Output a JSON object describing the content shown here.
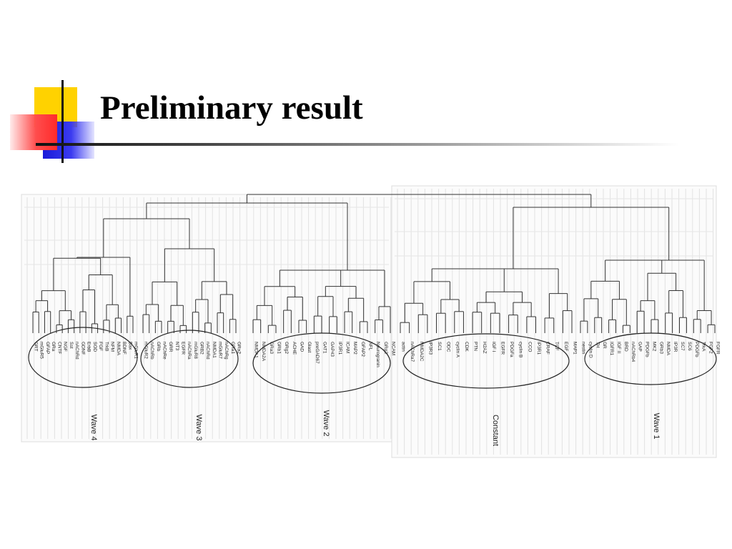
{
  "slide": {
    "title": "Preliminary result"
  },
  "dendrogram": {
    "groups": [
      {
        "label": "Wave 4",
        "leaves": [
          "GRT",
          "mGluR5",
          "GFAP",
          "GRa",
          "CNTF",
          "NGF",
          "Sst",
          "nAChRd",
          "GDNF",
          "ErbB",
          "SOD",
          "FGF",
          "TrkB",
          "NFM",
          "NMDA",
          "BDNF",
          "Bax",
          "mGluR1"
        ]
      },
      {
        "label": "Wave 3",
        "leaves": [
          "mGluR2",
          "nAChRb",
          "GRb",
          "nAChRe",
          "GRR",
          "NT3",
          "EGFR",
          "nAChRa",
          "mGluR8",
          "GRB2",
          "nAChRd",
          "NMDA1",
          "mGluR7",
          "nAChRg",
          "GRa1",
          "GRa2"
        ]
      },
      {
        "label": "Wave 2",
        "leaves": [
          "NMDA1",
          "NMDA2A",
          "GRa3",
          "GRb1",
          "GRg2",
          "ACHE",
          "GAD",
          "Glast",
          "preGAD67",
          "GAT1",
          "GAP43",
          "IP3R1",
          "ICAM",
          "MAP2",
          "GFAP2",
          "NFL",
          "Neurogranin",
          "GRg3",
          "NCAM"
        ]
      },
      {
        "label": "Constant",
        "leaves": [
          "actin",
          "nAChRa7",
          "NMDA2C",
          "IP3R3",
          "SC1",
          "ODC",
          "cyclin A",
          "CDK",
          "PTN",
          "H2AZ",
          "IGF I",
          "EGFR",
          "PDGFa",
          "cyclin B",
          "CCO",
          "IP3R1",
          "CRAF",
          "TCF",
          "EGF",
          "MAP1"
        ]
      },
      {
        "label": "Wave 1",
        "leaves": [
          "nestin",
          "cyclin D",
          "TH",
          "GR",
          "IGFR1",
          "IGF II",
          "BRD",
          "nAChRb4",
          "GAP",
          "PDGFb",
          "MK2",
          "GRb3",
          "NMDA",
          "IP3R",
          "SC7",
          "SC6",
          "PDGFb",
          "TrkA",
          "FGF2",
          "FGFR"
        ]
      }
    ]
  }
}
